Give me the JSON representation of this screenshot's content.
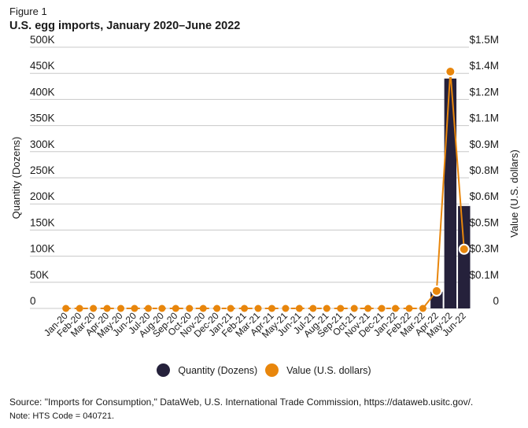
{
  "figure_label": "Figure 1",
  "title": "U.S. egg imports, January 2020–June 2022",
  "source": "Source: \"Imports for Consumption,\" DataWeb, U.S. International Trade Commission, https://dataweb.usitc.gov/.",
  "note": "Note: HTS Code = 040721.",
  "colors": {
    "bar": "#25213b",
    "line": "#e8860c",
    "grid": "#c8c8c8"
  },
  "chart_data": {
    "type": "bar",
    "title": "U.S. egg imports, January 2020–June 2022",
    "categories": [
      "Jan-20",
      "Feb-20",
      "Mar-20",
      "Apr-20",
      "May-20",
      "Jun-20",
      "Jul-20",
      "Aug-20",
      "Sep-20",
      "Oct-20",
      "Nov-20",
      "Dec-20",
      "Jan-21",
      "Feb-21",
      "Mar-21",
      "Apr-21",
      "May-21",
      "Jun-21",
      "Jul-21",
      "Aug-21",
      "Sep-21",
      "Oct-21",
      "Nov-21",
      "Dec-21",
      "Jan-22",
      "Feb-22",
      "Mar-22",
      "Apr-22",
      "May-22",
      "Jun-22"
    ],
    "series": [
      {
        "name": "Quantity (Dozens)",
        "type": "bar",
        "axis": "left",
        "values": [
          0,
          0,
          0,
          0,
          0,
          0,
          0,
          0,
          0,
          0,
          0,
          0,
          0,
          0,
          0,
          0,
          0,
          0,
          0,
          0,
          0,
          0,
          0,
          0,
          0,
          0,
          0,
          32000,
          440000,
          196000
        ]
      },
      {
        "name": "Value (U.S. dollars)",
        "type": "line",
        "axis": "right",
        "values": [
          0,
          0,
          0,
          0,
          0,
          0,
          0,
          0,
          0,
          0,
          0,
          0,
          0,
          0,
          0,
          0,
          0,
          0,
          0,
          0,
          0,
          0,
          0,
          0,
          0,
          0,
          0,
          100000,
          1360000,
          340000
        ]
      }
    ],
    "ylabel": "Quantity (Dozens)",
    "y2label": "Value (U.S. dollars)",
    "xlabel": "",
    "ylim": [
      0,
      500000
    ],
    "y2lim": [
      0,
      1500000
    ],
    "yticks": [
      "0",
      "50K",
      "100K",
      "150K",
      "200K",
      "250K",
      "300K",
      "350K",
      "400K",
      "450K",
      "500K"
    ],
    "y2ticks": [
      "0",
      "$0.1M",
      "$0.3M",
      "$0.5M",
      "$0.6M",
      "$0.8M",
      "$0.9M",
      "$1.1M",
      "$1.2M",
      "$1.4M",
      "$1.5M"
    ],
    "grid": true,
    "legend_position": "bottom-center",
    "legend": [
      "Quantity (Dozens)",
      "Value (U.S. dollars)"
    ]
  }
}
